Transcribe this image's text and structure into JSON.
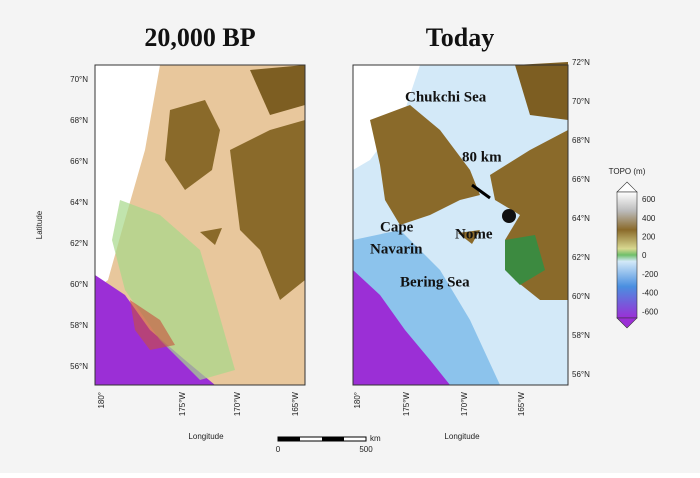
{
  "left_map": {
    "title": "20,000 BP",
    "lat_labels": [
      "70°N",
      "68°N",
      "66°N",
      "64°N",
      "62°N",
      "60°N",
      "58°N",
      "56°N"
    ],
    "lon_labels": [
      "180°",
      "175°W",
      "170°W",
      "165°W"
    ],
    "y_axis_label": "Latitude",
    "x_axis_label": "Longitude"
  },
  "right_map": {
    "title": "Today",
    "lat_labels": [
      "72°N",
      "70°N",
      "68°N",
      "66°N",
      "64°N",
      "62°N",
      "60°N",
      "58°N",
      "56°N"
    ],
    "lon_labels": [
      "180°",
      "175°W",
      "170°W",
      "165°W"
    ],
    "x_axis_label": "Longitude",
    "annotations": [
      "Chukchi Sea",
      "80 km",
      "Cape",
      "Navarin",
      "Nome",
      "Bering Sea"
    ]
  },
  "colorbar": {
    "title": "TOPO (m)",
    "ticks": [
      600,
      400,
      200,
      0,
      -200,
      -400,
      -600
    ]
  },
  "scale_bar": {
    "unit": "km",
    "ticks": [
      0,
      500
    ]
  }
}
